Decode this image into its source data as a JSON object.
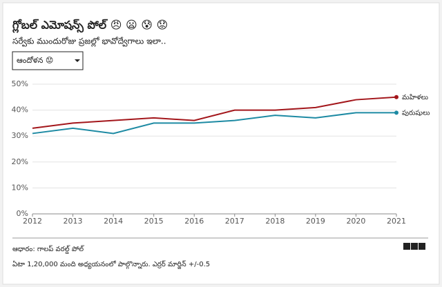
{
  "chart_data": {
    "type": "line",
    "title": "గ్లోబల్ ఎమోషన్స్ పోల్ 😠 😦 😰 😟",
    "subtitle": "సర్వేకు ముందురోజు ప్రజల్లో భావోద్వేగాలు ఇలా..",
    "selector": "ఆందోళన 😟",
    "x": [
      2012,
      2013,
      2014,
      2015,
      2016,
      2017,
      2018,
      2019,
      2020,
      2021
    ],
    "series": [
      {
        "name": "మహిళలు",
        "color": "#a3161b",
        "values": [
          33,
          35,
          36,
          37,
          36,
          40,
          40,
          41,
          44,
          45
        ]
      },
      {
        "name": "పురుషులు",
        "color": "#1d8aa3",
        "values": [
          31,
          33,
          31,
          35,
          35,
          36,
          38,
          37,
          39,
          39
        ]
      }
    ],
    "xlim": [
      2012,
      2021
    ],
    "xticks": [
      2012,
      2013,
      2014,
      2015,
      2016,
      2017,
      2018,
      2019,
      2020,
      2021
    ],
    "ylim": [
      0,
      50
    ],
    "yticks": [
      {
        "value": 0,
        "label": "0%"
      },
      {
        "value": 10,
        "label": "10%"
      },
      {
        "value": 20,
        "label": "20%"
      },
      {
        "value": 30,
        "label": "30%"
      },
      {
        "value": 40,
        "label": "40%"
      },
      {
        "value": 50,
        "label": "50%"
      }
    ],
    "grid": true,
    "source": "ఆధారం: గాలప్ వరల్డ్ పోల్",
    "note": "ఏటా 1,20,000 మంది అధ్యయనంలో పాల్గొన్నారు. ఎర్రర్ మార్జిన్ +/-0.5",
    "logo": "BBC"
  }
}
